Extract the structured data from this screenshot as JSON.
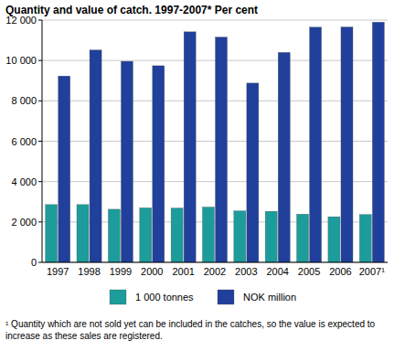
{
  "chart_data": {
    "type": "bar",
    "title": "Quantity and value of catch. 1997-2007* Per cent",
    "categories": [
      "1997",
      "1998",
      "1999",
      "2000",
      "2001",
      "2002",
      "2003",
      "2004",
      "2005",
      "2006",
      "2007¹"
    ],
    "series": [
      {
        "name": "1 000 tonnes",
        "color": "#1c9c9a",
        "values": [
          2860,
          2860,
          2630,
          2700,
          2690,
          2740,
          2550,
          2530,
          2390,
          2260,
          2370
        ]
      },
      {
        "name": "NOK million",
        "color": "#21409c",
        "values": [
          9230,
          10520,
          9960,
          9740,
          11420,
          11160,
          8880,
          10400,
          11650,
          11660,
          11900
        ]
      }
    ],
    "ylim": [
      0,
      12000
    ],
    "yticks": [
      0,
      {
        "value": 2000,
        "label": "2 000"
      },
      {
        "value": 4000,
        "label": "4 000"
      },
      {
        "value": 6000,
        "label": "6 000"
      },
      {
        "value": 8000,
        "label": "8 000"
      },
      {
        "value": 10000,
        "label": "10 000"
      },
      {
        "value": 12000,
        "label": "12 000"
      }
    ],
    "grid": true,
    "legend": "bottom",
    "annotations": [
      "¹ Quantity which are not sold yet can be included in the catches, so the value is expected to increase as these sales are registered."
    ]
  }
}
